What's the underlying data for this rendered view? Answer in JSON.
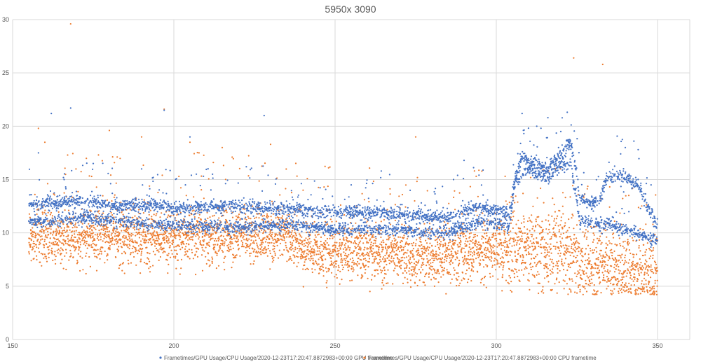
{
  "chart_data": {
    "type": "scatter",
    "title": "5950x 3090",
    "xlabel": "",
    "ylabel": "",
    "xlim": [
      150,
      360
    ],
    "ylim": [
      0,
      30
    ],
    "x_ticks": [
      150,
      200,
      250,
      300,
      350
    ],
    "y_ticks": [
      0,
      5,
      10,
      15,
      20,
      25,
      30
    ],
    "grid": true,
    "legend_position": "bottom",
    "colors": {
      "gpu": "#4472C4",
      "cpu": "#ED7D31",
      "grid": "#d9d9d9",
      "text": "#595959"
    },
    "series": [
      {
        "name": "Frametimes/GPU Usage/CPU Usage/2020-12-23T17:20:47.8872983+00:00 GPU frametime",
        "color": "#4472C4",
        "x_range": [
          155,
          350
        ],
        "upper_band": [
          [
            155,
            12.7
          ],
          [
            170,
            13.0
          ],
          [
            180,
            12.6
          ],
          [
            195,
            12.6
          ],
          [
            200,
            12.3
          ],
          [
            220,
            12.5
          ],
          [
            235,
            12.2
          ],
          [
            250,
            12.0
          ],
          [
            270,
            11.8
          ],
          [
            285,
            11.4
          ],
          [
            295,
            12.5
          ],
          [
            302,
            12.0
          ],
          [
            304,
            11.6
          ],
          [
            306,
            15.5
          ],
          [
            308,
            17.0
          ],
          [
            312,
            16.5
          ],
          [
            316,
            16.0
          ],
          [
            320,
            17.5
          ],
          [
            323,
            18.5
          ],
          [
            325,
            15.5
          ],
          [
            326,
            13.0
          ],
          [
            332,
            12.8
          ],
          [
            334,
            15.0
          ],
          [
            337,
            15.5
          ],
          [
            340,
            15.2
          ],
          [
            344,
            14.5
          ],
          [
            347,
            12.5
          ],
          [
            350,
            10.5
          ]
        ],
        "lower_band": [
          [
            155,
            11.0
          ],
          [
            170,
            11.4
          ],
          [
            185,
            11.0
          ],
          [
            200,
            10.7
          ],
          [
            220,
            10.5
          ],
          [
            235,
            10.8
          ],
          [
            250,
            10.3
          ],
          [
            270,
            10.3
          ],
          [
            285,
            10.0
          ],
          [
            295,
            11.0
          ],
          [
            302,
            10.7
          ],
          [
            304,
            10.5
          ],
          [
            306,
            15.0
          ],
          [
            310,
            16.0
          ],
          [
            316,
            15.0
          ],
          [
            320,
            16.5
          ],
          [
            323,
            16.5
          ],
          [
            325,
            13.0
          ],
          [
            326,
            11.0
          ],
          [
            335,
            10.8
          ],
          [
            345,
            9.8
          ],
          [
            350,
            9.3
          ]
        ],
        "outliers": [
          [
            158,
            17.5
          ],
          [
            162,
            21.2
          ],
          [
            168,
            21.7
          ],
          [
            175,
            16.5
          ],
          [
            190,
            16.0
          ],
          [
            197,
            21.5
          ],
          [
            205,
            19.0
          ],
          [
            212,
            15.5
          ],
          [
            228,
            21.0
          ],
          [
            255,
            14.5
          ],
          [
            290,
            16.8
          ],
          [
            308,
            21.2
          ],
          [
            316,
            20.8
          ],
          [
            320,
            19.5
          ],
          [
            340,
            18.0
          ],
          [
            344,
            17.8
          ],
          [
            348,
            14.5
          ]
        ]
      },
      {
        "name": "Frametimes/GPU Usage/CPU Usage/2020-12-23T17:20:47.8872983+00:00 CPU frametime",
        "color": "#ED7D31",
        "x_range": [
          155,
          350
        ],
        "center": [
          [
            155,
            9.6
          ],
          [
            170,
            9.6
          ],
          [
            185,
            9.5
          ],
          [
            200,
            9.7
          ],
          [
            220,
            9.6
          ],
          [
            235,
            9.7
          ],
          [
            240,
            8.5
          ],
          [
            250,
            8.2
          ],
          [
            270,
            8.0
          ],
          [
            285,
            7.8
          ],
          [
            295,
            8.3
          ],
          [
            305,
            8.6
          ],
          [
            306,
            9.0
          ],
          [
            315,
            8.5
          ],
          [
            325,
            7.8
          ],
          [
            326,
            7.0
          ],
          [
            335,
            6.7
          ],
          [
            345,
            6.5
          ],
          [
            350,
            6.0
          ]
        ],
        "spread": [
          [
            155,
            1.7
          ],
          [
            240,
            1.7
          ],
          [
            300,
            1.8
          ],
          [
            306,
            2.5
          ],
          [
            325,
            2.5
          ],
          [
            330,
            2.3
          ],
          [
            350,
            2.2
          ]
        ],
        "outliers": [
          [
            158,
            19.8
          ],
          [
            160,
            18.5
          ],
          [
            168,
            29.6
          ],
          [
            180,
            19.6
          ],
          [
            190,
            19.0
          ],
          [
            197,
            21.6
          ],
          [
            205,
            18.5
          ],
          [
            215,
            18.0
          ],
          [
            230,
            18.3
          ],
          [
            275,
            19.0
          ],
          [
            324,
            26.4
          ],
          [
            333,
            25.8
          ]
        ]
      }
    ]
  }
}
